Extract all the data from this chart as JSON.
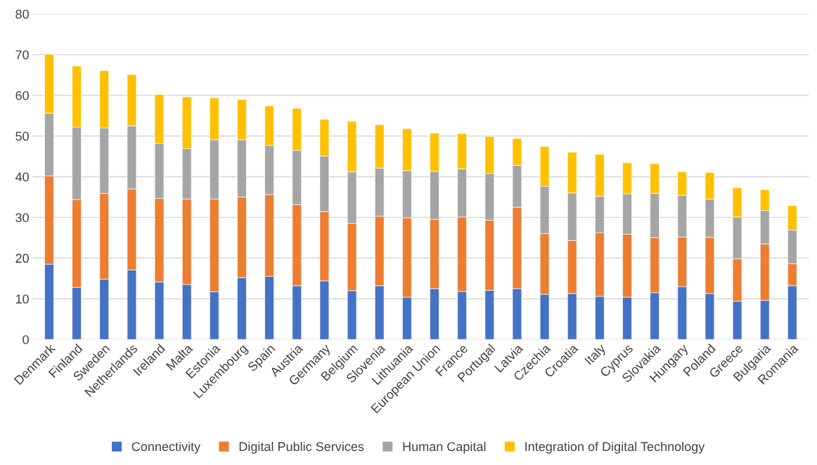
{
  "chart_data": {
    "type": "bar",
    "stacked": true,
    "categories": [
      "Denmark",
      "Finland",
      "Sweden",
      "Netherlands",
      "Ireland",
      "Malta",
      "Estonia",
      "Luxembourg",
      "Spain",
      "Austria",
      "Germany",
      "Belgium",
      "Slovenia",
      "Lithuania",
      "European Union",
      "France",
      "Portugal",
      "Latvia",
      "Czechia",
      "Croatia",
      "Italy",
      "Cyprus",
      "Slovakia",
      "Hungary",
      "Poland",
      "Greece",
      "Bulgaria",
      "Romania"
    ],
    "series": [
      {
        "name": "Connectivity",
        "color": "#4472c4",
        "values": [
          18.5,
          12.8,
          14.8,
          17.1,
          14.1,
          13.5,
          11.7,
          15.2,
          15.5,
          13.2,
          14.4,
          12.0,
          13.2,
          10.4,
          12.5,
          11.8,
          12.1,
          12.5,
          11.1,
          11.3,
          10.6,
          10.4,
          11.5,
          13.0,
          11.3,
          9.4,
          9.6,
          13.2
        ]
      },
      {
        "name": "Digital Public Services",
        "color": "#ed7d31",
        "values": [
          21.7,
          21.6,
          21.1,
          19.9,
          20.6,
          21.0,
          22.8,
          19.8,
          20.1,
          19.9,
          17.0,
          16.5,
          17.1,
          19.5,
          17.0,
          18.3,
          17.2,
          20.0,
          14.9,
          13.0,
          15.7,
          15.5,
          13.5,
          12.2,
          13.8,
          10.4,
          13.9,
          5.4
        ]
      },
      {
        "name": "Human Capital",
        "color": "#a5a5a5",
        "values": [
          15.4,
          17.8,
          16.1,
          15.5,
          13.5,
          12.4,
          14.6,
          14.1,
          12.1,
          13.4,
          13.7,
          12.7,
          11.8,
          11.6,
          11.8,
          11.8,
          11.5,
          10.3,
          11.6,
          11.7,
          8.9,
          9.9,
          10.9,
          10.2,
          9.4,
          10.3,
          8.2,
          8.3
        ]
      },
      {
        "name": "Integration of Digital Technology",
        "color": "#ffc000",
        "values": [
          14.5,
          15.0,
          14.1,
          12.6,
          12.0,
          12.7,
          10.3,
          9.9,
          9.7,
          10.3,
          9.0,
          12.4,
          10.7,
          10.3,
          9.4,
          8.7,
          9.1,
          6.6,
          9.8,
          10.0,
          10.3,
          7.6,
          7.3,
          5.8,
          6.5,
          7.2,
          5.1,
          6.0
        ]
      }
    ],
    "ylim": [
      0,
      80
    ],
    "yticks": [
      0,
      10,
      20,
      30,
      40,
      50,
      60,
      70,
      80
    ],
    "grid": "y",
    "legend": "bottom"
  }
}
